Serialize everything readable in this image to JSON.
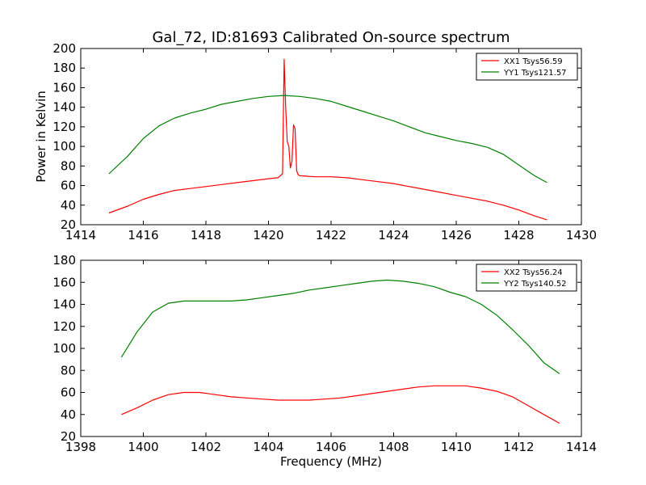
{
  "chart_data": [
    {
      "type": "line",
      "title": "Gal_72, ID:81693 Calibrated On-source spectrum",
      "xlabel": "",
      "ylabel": "Power in Kelvin",
      "xlim": [
        1414,
        1430
      ],
      "ylim": [
        20,
        200
      ],
      "xticks": [
        "1414",
        "1416",
        "1418",
        "1420",
        "1422",
        "1424",
        "1426",
        "1428",
        "1430"
      ],
      "yticks": [
        "20",
        "40",
        "60",
        "80",
        "100",
        "120",
        "140",
        "160",
        "180",
        "200"
      ],
      "legend_position": "top-right",
      "grid": false,
      "series": [
        {
          "name": "XX1 Tsys56.59",
          "color": "#ff0000",
          "x": [
            1414.9,
            1415.5,
            1416.0,
            1416.5,
            1417.0,
            1417.5,
            1418.0,
            1418.5,
            1419.0,
            1419.5,
            1420.0,
            1420.3,
            1420.45,
            1420.5,
            1420.55,
            1420.6,
            1420.65,
            1420.7,
            1420.75,
            1420.8,
            1420.85,
            1420.9,
            1420.95,
            1421.0,
            1421.5,
            1422.0,
            1422.5,
            1423.0,
            1423.5,
            1424.0,
            1424.5,
            1425.0,
            1425.5,
            1426.0,
            1426.5,
            1427.0,
            1427.5,
            1428.0,
            1428.5,
            1428.9
          ],
          "y": [
            32,
            39,
            46,
            51,
            55,
            57,
            59,
            61,
            63,
            65,
            67,
            68,
            72,
            189,
            140,
            105,
            100,
            78,
            85,
            122,
            118,
            75,
            71,
            70,
            69,
            69,
            68,
            66,
            64,
            62,
            59,
            56,
            53,
            50,
            47,
            44,
            40,
            35,
            29,
            25
          ]
        },
        {
          "name": "YY1 Tsys121.57",
          "color": "#008000",
          "x": [
            1414.9,
            1415.5,
            1416.0,
            1416.5,
            1417.0,
            1417.5,
            1418.0,
            1418.5,
            1419.0,
            1419.5,
            1420.0,
            1420.5,
            1421.0,
            1421.5,
            1422.0,
            1422.5,
            1423.0,
            1423.5,
            1424.0,
            1424.5,
            1425.0,
            1425.5,
            1426.0,
            1426.5,
            1427.0,
            1427.5,
            1428.0,
            1428.5,
            1428.9
          ],
          "y": [
            72,
            90,
            108,
            121,
            129,
            134,
            138,
            143,
            146,
            149,
            151,
            152,
            151,
            149,
            146,
            141,
            136,
            131,
            126,
            120,
            114,
            110,
            106,
            103,
            99,
            92,
            81,
            70,
            63
          ]
        }
      ]
    },
    {
      "type": "line",
      "title": "",
      "xlabel": "Frequency (MHz)",
      "ylabel": "",
      "xlim": [
        1398,
        1414
      ],
      "ylim": [
        20,
        180
      ],
      "xticks": [
        "1398",
        "1400",
        "1402",
        "1404",
        "1406",
        "1408",
        "1410",
        "1412",
        "1414"
      ],
      "yticks": [
        "20",
        "40",
        "60",
        "80",
        "100",
        "120",
        "140",
        "160",
        "180"
      ],
      "legend_position": "top-right",
      "grid": false,
      "series": [
        {
          "name": "XX2 Tsys56.24",
          "color": "#ff0000",
          "x": [
            1399.3,
            1399.8,
            1400.3,
            1400.8,
            1401.3,
            1401.8,
            1402.3,
            1402.8,
            1403.3,
            1403.8,
            1404.3,
            1404.8,
            1405.3,
            1405.8,
            1406.3,
            1406.8,
            1407.3,
            1407.8,
            1408.3,
            1408.8,
            1409.3,
            1409.8,
            1410.3,
            1410.8,
            1411.3,
            1411.8,
            1412.3,
            1412.8,
            1413.3
          ],
          "y": [
            40,
            46,
            53,
            58,
            60,
            60,
            58,
            56,
            55,
            54,
            53,
            53,
            53,
            54,
            55,
            57,
            59,
            61,
            63,
            65,
            66,
            66,
            66,
            64,
            61,
            56,
            48,
            40,
            32
          ]
        },
        {
          "name": "YY2 Tsys140.52",
          "color": "#008000",
          "x": [
            1399.3,
            1399.8,
            1400.3,
            1400.8,
            1401.3,
            1401.8,
            1402.3,
            1402.8,
            1403.3,
            1403.8,
            1404.3,
            1404.8,
            1405.3,
            1405.8,
            1406.3,
            1406.8,
            1407.3,
            1407.8,
            1408.3,
            1408.8,
            1409.3,
            1409.8,
            1410.3,
            1410.8,
            1411.3,
            1411.8,
            1412.3,
            1412.8,
            1413.3
          ],
          "y": [
            92,
            115,
            133,
            141,
            143,
            143,
            143,
            143,
            144,
            146,
            148,
            150,
            153,
            155,
            157,
            159,
            161,
            162,
            161,
            159,
            156,
            151,
            147,
            140,
            130,
            117,
            103,
            87,
            77
          ]
        }
      ]
    }
  ]
}
